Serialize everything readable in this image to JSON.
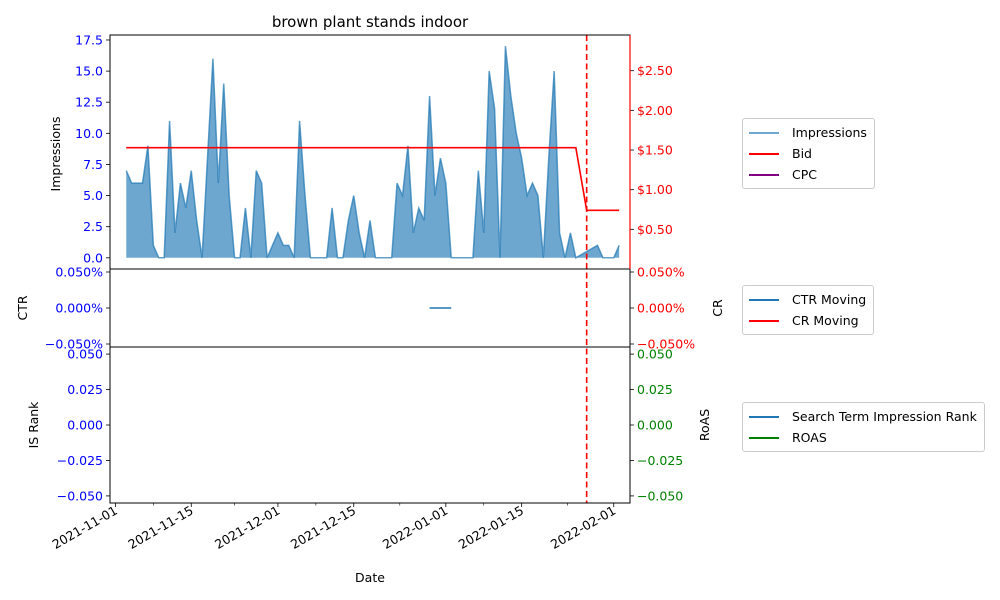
{
  "chart_data": {
    "type": "line",
    "title": "brown plant stands indoor",
    "xlabel": "Date",
    "x_ticks": [
      "2021-11-01",
      "2021-11-15",
      "2021-12-01",
      "2021-12-15",
      "2022-01-01",
      "2022-01-15",
      "2022-02-01"
    ],
    "x_range": [
      "2021-10-31",
      "2022-02-04"
    ],
    "marker_date": "2022-01-27",
    "marker_color": "#ff0000",
    "panels": [
      {
        "id": "impressions",
        "ylabel_left": "Impressions",
        "ylabel_right": "",
        "left_ticks": [
          "0.0",
          "2.5",
          "5.0",
          "7.5",
          "10.0",
          "12.5",
          "15.0",
          "17.5"
        ],
        "left_range": [
          -0.9,
          17.9
        ],
        "right_ticks": [
          "$0.50",
          "$1.00",
          "$1.50",
          "$2.00",
          "$2.50"
        ],
        "right_range": [
          0,
          2.95
        ],
        "left_color": "#0000ff",
        "right_color": "#ff0000",
        "series": [
          {
            "name": "Impressions",
            "type": "area",
            "color": "#1f77b4",
            "points": [
              [
                "2021-11-03",
                7
              ],
              [
                "2021-11-04",
                6
              ],
              [
                "2021-11-05",
                6
              ],
              [
                "2021-11-06",
                6
              ],
              [
                "2021-11-07",
                9
              ],
              [
                "2021-11-08",
                1
              ],
              [
                "2021-11-09",
                0
              ],
              [
                "2021-11-10",
                0
              ],
              [
                "2021-11-11",
                11
              ],
              [
                "2021-11-12",
                2
              ],
              [
                "2021-11-13",
                6
              ],
              [
                "2021-11-14",
                4
              ],
              [
                "2021-11-15",
                7
              ],
              [
                "2021-11-16",
                3
              ],
              [
                "2021-11-17",
                0
              ],
              [
                "2021-11-18",
                8
              ],
              [
                "2021-11-19",
                16
              ],
              [
                "2021-11-20",
                6
              ],
              [
                "2021-11-21",
                14
              ],
              [
                "2021-11-22",
                5
              ],
              [
                "2021-11-23",
                0
              ],
              [
                "2021-11-24",
                0
              ],
              [
                "2021-11-25",
                4
              ],
              [
                "2021-11-26",
                0
              ],
              [
                "2021-11-27",
                7
              ],
              [
                "2021-11-28",
                6
              ],
              [
                "2021-11-29",
                0
              ],
              [
                "2021-11-30",
                1
              ],
              [
                "2021-12-01",
                2
              ],
              [
                "2021-12-02",
                1
              ],
              [
                "2021-12-03",
                1
              ],
              [
                "2021-12-04",
                0
              ],
              [
                "2021-12-05",
                11
              ],
              [
                "2021-12-06",
                5
              ],
              [
                "2021-12-07",
                0
              ],
              [
                "2021-12-08",
                0
              ],
              [
                "2021-12-09",
                0
              ],
              [
                "2021-12-10",
                0
              ],
              [
                "2021-12-11",
                4
              ],
              [
                "2021-12-12",
                0
              ],
              [
                "2021-12-13",
                0
              ],
              [
                "2021-12-14",
                3
              ],
              [
                "2021-12-15",
                5
              ],
              [
                "2021-12-16",
                2
              ],
              [
                "2021-12-17",
                0
              ],
              [
                "2021-12-18",
                3
              ],
              [
                "2021-12-19",
                0
              ],
              [
                "2021-12-20",
                0
              ],
              [
                "2021-12-21",
                0
              ],
              [
                "2021-12-22",
                0
              ],
              [
                "2021-12-23",
                6
              ],
              [
                "2021-12-24",
                5
              ],
              [
                "2021-12-25",
                9
              ],
              [
                "2021-12-26",
                2
              ],
              [
                "2021-12-27",
                4
              ],
              [
                "2021-12-28",
                3
              ],
              [
                "2021-12-29",
                13
              ],
              [
                "2021-12-30",
                5
              ],
              [
                "2021-12-31",
                8
              ],
              [
                "2022-01-01",
                6
              ],
              [
                "2022-01-02",
                0
              ],
              [
                "2022-01-03",
                0
              ],
              [
                "2022-01-04",
                0
              ],
              [
                "2022-01-05",
                0
              ],
              [
                "2022-01-06",
                0
              ],
              [
                "2022-01-07",
                7
              ],
              [
                "2022-01-08",
                2
              ],
              [
                "2022-01-09",
                15
              ],
              [
                "2022-01-10",
                12
              ],
              [
                "2022-01-11",
                0
              ],
              [
                "2022-01-12",
                17
              ],
              [
                "2022-01-13",
                13
              ],
              [
                "2022-01-14",
                10
              ],
              [
                "2022-01-15",
                8
              ],
              [
                "2022-01-16",
                5
              ],
              [
                "2022-01-17",
                6
              ],
              [
                "2022-01-18",
                5
              ],
              [
                "2022-01-19",
                0
              ],
              [
                "2022-01-20",
                8
              ],
              [
                "2022-01-21",
                15
              ],
              [
                "2022-01-22",
                2
              ],
              [
                "2022-01-23",
                0
              ],
              [
                "2022-01-24",
                2
              ],
              [
                "2022-01-25",
                0
              ],
              [
                "2022-01-27",
                0.5
              ],
              [
                "2022-01-29",
                1
              ],
              [
                "2022-01-30",
                0
              ],
              [
                "2022-01-31",
                0
              ],
              [
                "2022-02-01",
                0
              ],
              [
                "2022-02-02",
                1
              ]
            ]
          },
          {
            "name": "Bid",
            "type": "line",
            "axis": "right",
            "color": "#ff0000",
            "points": [
              [
                "2021-11-03",
                1.53
              ],
              [
                "2022-01-25",
                1.53
              ],
              [
                "2022-01-27",
                0.74
              ],
              [
                "2022-02-02",
                0.74
              ]
            ]
          },
          {
            "name": "CPC",
            "type": "line",
            "axis": "right",
            "color": "#800080",
            "points": []
          }
        ],
        "legend": [
          "Impressions",
          "Bid",
          "CPC"
        ]
      },
      {
        "id": "rates",
        "ylabel_left": "CTR",
        "ylabel_right": "CR",
        "left_ticks": [
          "−0.050%",
          "0.000%",
          "0.050%"
        ],
        "right_ticks": [
          "−0.050%",
          "0.000%",
          "0.050%"
        ],
        "range": [
          -0.05,
          0.05
        ],
        "left_color": "#0000ff",
        "right_color": "#ff0000",
        "series": [
          {
            "name": "CTR Moving",
            "type": "line",
            "color": "#1f77b4",
            "points": [
              [
                "2021-12-29",
                0
              ],
              [
                "2022-01-02",
                0
              ]
            ]
          },
          {
            "name": "CR Moving",
            "type": "line",
            "axis": "right",
            "color": "#ff0000",
            "points": []
          }
        ],
        "legend": [
          "CTR Moving",
          "CR Moving"
        ]
      },
      {
        "id": "rank",
        "ylabel_left": "IS Rank",
        "ylabel_right": "RoAS",
        "left_ticks": [
          "−0.050",
          "−0.025",
          "0.000",
          "0.025",
          "0.050"
        ],
        "right_ticks": [
          "−0.050",
          "−0.025",
          "0.000",
          "0.025",
          "0.050"
        ],
        "range": [
          -0.055,
          0.055
        ],
        "left_color": "#0000ff",
        "right_color": "#008000",
        "series": [
          {
            "name": "Search Term Impression Rank",
            "type": "line",
            "color": "#1f77b4",
            "points": []
          },
          {
            "name": "ROAS",
            "type": "line",
            "axis": "right",
            "color": "#008000",
            "points": []
          }
        ],
        "legend": [
          "Search Term Impression Rank",
          "ROAS"
        ]
      }
    ]
  }
}
